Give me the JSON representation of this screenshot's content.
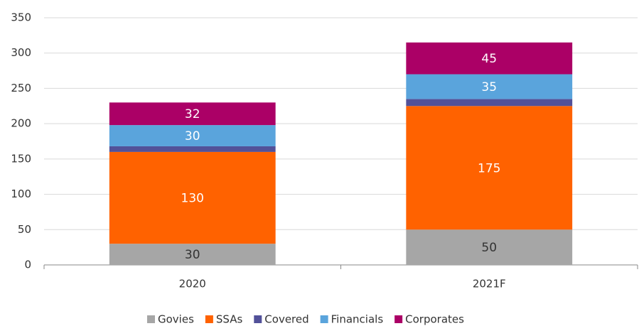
{
  "chart_data": {
    "type": "stacked_bar",
    "categories": [
      "2020",
      "2021F"
    ],
    "series": [
      {
        "name": "Govies",
        "color": "#a6a6a6",
        "values": [
          30,
          50
        ],
        "labels": true
      },
      {
        "name": "SSAs",
        "color": "#ff6200",
        "values": [
          130,
          175
        ],
        "labels": true
      },
      {
        "name": "Covered",
        "color": "#525199",
        "values": [
          8,
          10
        ],
        "labels": false
      },
      {
        "name": "Financials",
        "color": "#5aa4dc",
        "values": [
          30,
          35
        ],
        "labels": true
      },
      {
        "name": "Corporates",
        "color": "#ab0066",
        "values": [
          32,
          45
        ],
        "labels": true
      }
    ],
    "ylim": [
      0,
      350
    ],
    "yticks": [
      0,
      50,
      100,
      150,
      200,
      250,
      300,
      350
    ],
    "grid": true,
    "legend": "bottom"
  }
}
